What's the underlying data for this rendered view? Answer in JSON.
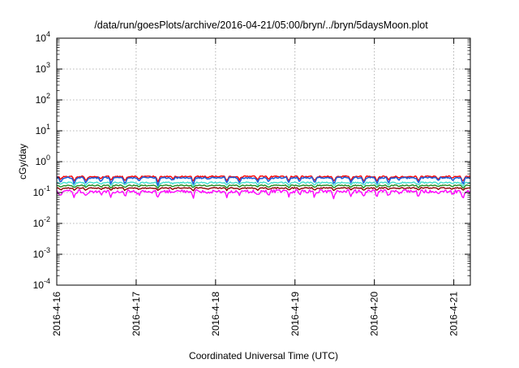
{
  "chart_data": {
    "type": "line",
    "title": "/data/run/goesPlots/archive/2016-04-21/05:00/bryn/../bryn/5daysMoon.plot",
    "xlabel": "Coordinated Universal Time (UTC)",
    "ylabel": "cGy/day",
    "y_scale": "log",
    "ylim": [
      0.0001,
      10000
    ],
    "xlim_days": [
      "2016-04-16",
      "2016-04-21T05:00"
    ],
    "grid": true,
    "x_ticks": [
      "2016-4-16",
      "2016-4-17",
      "2016-4-18",
      "2016-4-19",
      "2016-4-20",
      "2016-4-21"
    ],
    "y_ticks": [
      {
        "base": "10",
        "exp": "4",
        "value": 10000
      },
      {
        "base": "10",
        "exp": "3",
        "value": 1000
      },
      {
        "base": "10",
        "exp": "2",
        "value": 100
      },
      {
        "base": "10",
        "exp": "1",
        "value": 10
      },
      {
        "base": "10",
        "exp": "0",
        "value": 1
      },
      {
        "base": "10",
        "exp": "-1",
        "value": 0.1
      },
      {
        "base": "10",
        "exp": "-2",
        "value": 0.01
      },
      {
        "base": "10",
        "exp": "-3",
        "value": 0.001
      },
      {
        "base": "10",
        "exp": "-4",
        "value": 0.0001
      }
    ],
    "series": [
      {
        "color": "#ff00ff",
        "base_value": 0.11,
        "jitter": 0.25,
        "dip_depth": 0.45
      },
      {
        "color": "#8b0000",
        "base_value": 0.14,
        "jitter": 0.08,
        "dip_depth": 0.2
      },
      {
        "color": "#228b22",
        "base_value": 0.17,
        "jitter": 0.08,
        "dip_depth": 0.2
      },
      {
        "color": "#40e0d0",
        "base_value": 0.21,
        "jitter": 0.1,
        "dip_depth": 0.25
      },
      {
        "color": "#ff0000",
        "base_value": 0.33,
        "jitter": 0.1,
        "dip_depth": 0.35
      },
      {
        "color": "#1e5fd8",
        "base_value": 0.3,
        "jitter": 0.12,
        "dip_depth": 0.45
      }
    ]
  }
}
